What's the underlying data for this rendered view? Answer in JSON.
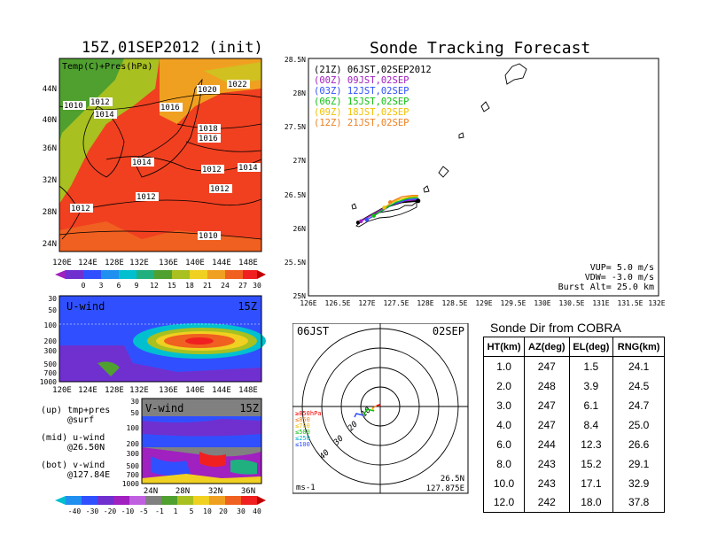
{
  "map_panel": {
    "title": "15Z,01SEP2012 (init)",
    "field_label": "Temp(C)+Pres(hPa)",
    "y_ticks": [
      "44N",
      "40N",
      "36N",
      "32N",
      "28N",
      "24N"
    ],
    "x_ticks": [
      "120E",
      "124E",
      "128E",
      "132E",
      "136E",
      "140E",
      "144E",
      "148E"
    ],
    "pressure_labels": [
      "1010",
      "1012",
      "1014",
      "1016",
      "1018",
      "1016",
      "1014",
      "1012",
      "1014",
      "1012",
      "1012",
      "1012",
      "1010",
      "1020",
      "1022"
    ],
    "colorbar_ticks": [
      "0",
      "3",
      "6",
      "9",
      "12",
      "15",
      "18",
      "21",
      "24",
      "27",
      "30"
    ]
  },
  "u_panel": {
    "label": "U-wind",
    "time": "15Z",
    "y_ticks": [
      "30",
      "50",
      "100",
      "200",
      "300",
      "500",
      "700",
      "1000"
    ],
    "x_ticks": [
      "120E",
      "124E",
      "128E",
      "132E",
      "136E",
      "140E",
      "144E",
      "148E"
    ]
  },
  "v_panel": {
    "label": "V-wind",
    "time": "15Z",
    "y_ticks": [
      "30",
      "50",
      "100",
      "200",
      "300",
      "500",
      "700",
      "1000"
    ],
    "x_ticks": [
      "24N",
      "28N",
      "32N",
      "36N"
    ]
  },
  "legend_notes": {
    "up1": "(up) tmp+pres",
    "up2": "@surf",
    "mid1": "(mid) u-wind",
    "mid2": "@26.50N",
    "bot1": "(bot) v-wind",
    "bot2": "@127.84E"
  },
  "wind_colorbar_ticks": [
    "-40",
    "-30",
    "-20",
    "-10",
    "-5",
    "-1",
    "1",
    "5",
    "10",
    "20",
    "30",
    "40"
  ],
  "tracking": {
    "title": "Sonde Tracking Forecast",
    "lines": [
      {
        "text": "(21Z) 06JST,02SEP2012",
        "color": "#000000"
      },
      {
        "text": "(00Z) 09JST,02SEP",
        "color": "#a020c0"
      },
      {
        "text": "(03Z) 12JST,02SEP",
        "color": "#3050ff"
      },
      {
        "text": "(06Z) 15JST,02SEP",
        "color": "#10c010"
      },
      {
        "text": "(09Z) 18JST,02SEP",
        "color": "#f0c000"
      },
      {
        "text": "(12Z) 21JST,02SEP",
        "color": "#f08020"
      }
    ],
    "y_ticks": [
      "28.5N",
      "28N",
      "27.5N",
      "27N",
      "26.5N",
      "26N",
      "25.5N",
      "25N"
    ],
    "x_ticks": [
      "126E",
      "126.5E",
      "127E",
      "127.5E",
      "128E",
      "128.5E",
      "129E",
      "129.5E",
      "130E",
      "130.5E",
      "131E",
      "131.5E",
      "132E"
    ],
    "vup": "VUP=  5.0 m/s",
    "vdw": "VDW= -3.0 m/s",
    "burst": "Burst Alt= 25.0 km"
  },
  "polar": {
    "time_left": "06JST",
    "date_right": "02SEP",
    "ring_labels": [
      "10",
      "20",
      "30",
      "40"
    ],
    "legend": [
      {
        "text": "≥850hPa",
        "color": "#ff0000"
      },
      {
        "text": "≤850",
        "color": "#f08020"
      },
      {
        "text": "≤700",
        "color": "#f0c000"
      },
      {
        "text": "≤500",
        "color": "#10c010"
      },
      {
        "text": "≤250",
        "color": "#00b0d0"
      },
      {
        "text": "≤100",
        "color": "#3050ff"
      }
    ],
    "unit": "ms-1",
    "lat": "26.5N",
    "lon": "127.875E"
  },
  "sonde_dir": {
    "title": "Sonde Dir from COBRA",
    "headers": [
      "HT(km)",
      "AZ(deg)",
      "EL(deg)",
      "RNG(km)"
    ],
    "rows": [
      [
        "1.0",
        "247",
        "1.5",
        "24.1"
      ],
      [
        "2.0",
        "248",
        "3.9",
        "24.5"
      ],
      [
        "3.0",
        "247",
        "6.1",
        "24.7"
      ],
      [
        "4.0",
        "247",
        "8.4",
        "25.0"
      ],
      [
        "6.0",
        "244",
        "12.3",
        "26.6"
      ],
      [
        "8.0",
        "243",
        "15.2",
        "29.1"
      ],
      [
        "10.0",
        "243",
        "17.1",
        "32.9"
      ],
      [
        "12.0",
        "242",
        "18.0",
        "37.8"
      ]
    ]
  },
  "chart_data": [
    {
      "type": "line",
      "title": "Sonde Tracking Forecast",
      "xlim": [
        126,
        132
      ],
      "ylim": [
        25,
        28.5
      ],
      "series": [
        {
          "name": "(21Z) 06JST,02SEP2012",
          "x": [
            127.88,
            127.6,
            127.3,
            127.05,
            126.85
          ],
          "y": [
            26.4,
            26.38,
            26.3,
            26.18,
            26.08
          ]
        },
        {
          "name": "(00Z) 09JST,02SEP",
          "x": [
            127.88,
            127.65,
            127.35,
            127.1,
            126.9
          ],
          "y": [
            26.42,
            26.4,
            26.32,
            26.2,
            26.1
          ]
        },
        {
          "name": "(03Z) 12JST,02SEP",
          "x": [
            127.88,
            127.7,
            127.45,
            127.2,
            127.0
          ],
          "y": [
            26.43,
            26.42,
            26.35,
            26.22,
            26.12
          ]
        },
        {
          "name": "(06Z) 15JST,02SEP",
          "x": [
            127.88,
            127.72,
            127.5,
            127.3,
            127.12
          ],
          "y": [
            26.45,
            26.44,
            26.38,
            26.28,
            26.18
          ]
        },
        {
          "name": "(09Z) 18JST,02SEP",
          "x": [
            127.88,
            127.75,
            127.55,
            127.4,
            127.3
          ],
          "y": [
            26.47,
            26.46,
            26.42,
            26.36,
            26.3
          ]
        },
        {
          "name": "(12Z) 21JST,02SEP",
          "x": [
            127.88,
            127.78,
            127.6,
            127.5,
            127.4
          ],
          "y": [
            26.48,
            26.48,
            26.46,
            26.42,
            26.38
          ]
        }
      ]
    }
  ]
}
